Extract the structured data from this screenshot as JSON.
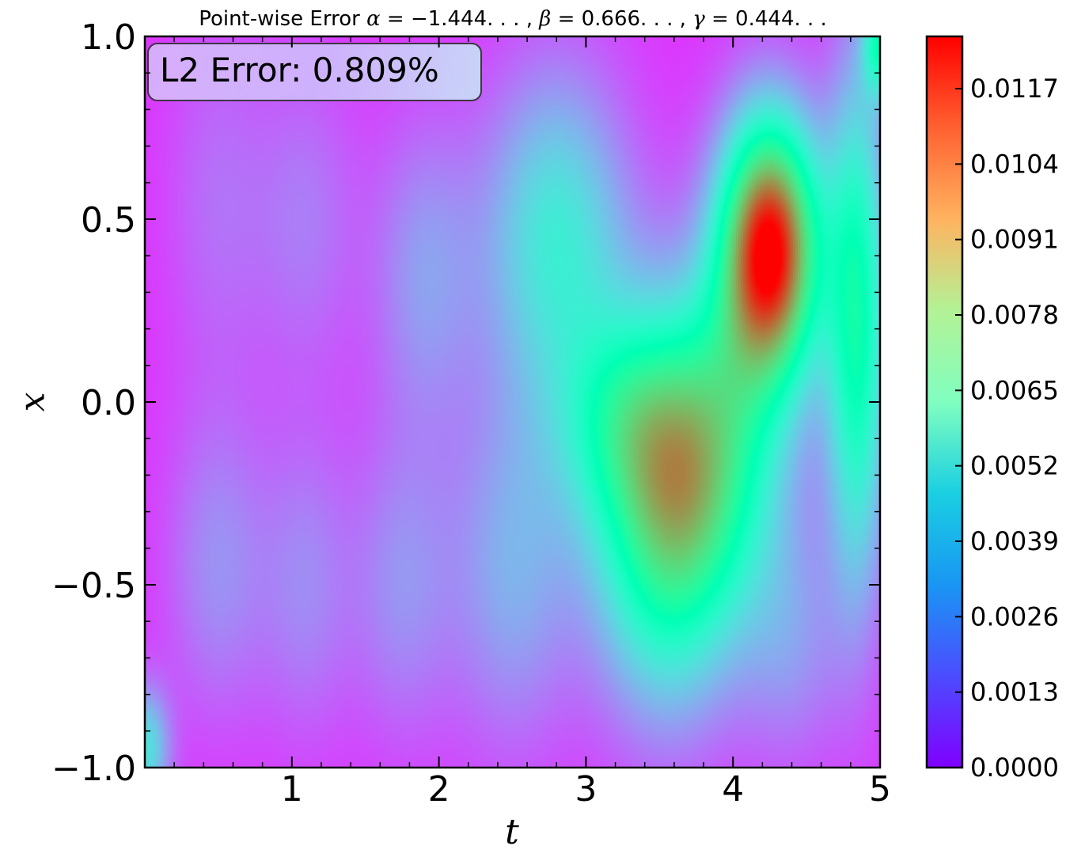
{
  "chart_data": {
    "type": "heatmap",
    "title_parts": {
      "prefix": "Point-wise Error ",
      "alpha_symbol": "α",
      "alpha_value": " = −1.444. . . , ",
      "beta_symbol": "β",
      "beta_value": " = 0.666. . . , ",
      "gamma_symbol": "γ",
      "gamma_value": " = 0.444. . ."
    },
    "xlabel": "t",
    "ylabel": "x",
    "xlim": [
      0,
      5
    ],
    "ylim": [
      -1,
      1
    ],
    "x_ticks": [
      {
        "value": 1,
        "label": "1"
      },
      {
        "value": 2,
        "label": "2"
      },
      {
        "value": 3,
        "label": "3"
      },
      {
        "value": 4,
        "label": "4"
      },
      {
        "value": 5,
        "label": "5"
      }
    ],
    "y_ticks": [
      {
        "value": -1.0,
        "label": "−1.0"
      },
      {
        "value": -0.5,
        "label": "−0.5"
      },
      {
        "value": 0.0,
        "label": "0.0"
      },
      {
        "value": 0.5,
        "label": "0.5"
      },
      {
        "value": 1.0,
        "label": "1.0"
      }
    ],
    "annotation": "L2 Error: 0.809%",
    "colormap": "rainbow",
    "colorbar": {
      "vmin": 0.0,
      "vmax": 0.0126,
      "ticks": [
        {
          "value": 0.0,
          "label": "0.0000"
        },
        {
          "value": 0.0013,
          "label": "0.0013"
        },
        {
          "value": 0.0026,
          "label": "0.0026"
        },
        {
          "value": 0.0039,
          "label": "0.0039"
        },
        {
          "value": 0.0052,
          "label": "0.0052"
        },
        {
          "value": 0.0065,
          "label": "0.0065"
        },
        {
          "value": 0.0078,
          "label": "0.0078"
        },
        {
          "value": 0.0091,
          "label": "0.0091"
        },
        {
          "value": 0.0104,
          "label": "0.0104"
        },
        {
          "value": 0.0117,
          "label": "0.0117"
        }
      ]
    },
    "background_value": 0.0008,
    "error_peaks": [
      {
        "t": 4.25,
        "x": 0.42,
        "value": 0.0118,
        "spread_t": 0.24,
        "spread_x": 0.25
      },
      {
        "t": 3.55,
        "x": -0.32,
        "value": 0.0065,
        "spread_t": 0.35,
        "spread_x": 0.35
      },
      {
        "t": 3.2,
        "x": -0.05,
        "value": 0.0028,
        "spread_t": 0.3,
        "spread_x": 0.2
      },
      {
        "t": 2.8,
        "x": 0.45,
        "value": 0.0038,
        "spread_t": 0.35,
        "spread_x": 0.32
      },
      {
        "t": 4.85,
        "x": 0.2,
        "value": 0.0055,
        "spread_t": 0.15,
        "spread_x": 0.5
      },
      {
        "t": 4.4,
        "x": -0.65,
        "value": 0.0016,
        "spread_t": 0.25,
        "spread_x": 0.25
      },
      {
        "t": 3.9,
        "x": -0.1,
        "value": 0.0042,
        "spread_t": 0.35,
        "spread_x": 0.3
      },
      {
        "t": 1.9,
        "x": 0.35,
        "value": 0.0018,
        "spread_t": 0.25,
        "spread_x": 0.3
      },
      {
        "t": 1.1,
        "x": 0.5,
        "value": 0.0012,
        "spread_t": 0.25,
        "spread_x": 0.3
      },
      {
        "t": 0.5,
        "x": 0.55,
        "value": 0.001,
        "spread_t": 0.25,
        "spread_x": 0.35
      },
      {
        "t": 0.5,
        "x": -0.45,
        "value": 0.0016,
        "spread_t": 0.25,
        "spread_x": 0.3
      },
      {
        "t": 1.1,
        "x": -0.5,
        "value": 0.0014,
        "spread_t": 0.22,
        "spread_x": 0.3
      },
      {
        "t": 1.75,
        "x": -0.5,
        "value": 0.0016,
        "spread_t": 0.25,
        "spread_x": 0.3
      },
      {
        "t": 2.5,
        "x": -0.45,
        "value": 0.0022,
        "spread_t": 0.3,
        "spread_x": 0.35
      },
      {
        "t": 0.0,
        "x": -0.95,
        "value": 0.0035,
        "spread_t": 0.12,
        "spread_x": 0.12
      },
      {
        "t": 5.0,
        "x": 0.98,
        "value": 0.0045,
        "spread_t": 0.08,
        "spread_x": 0.1
      }
    ]
  }
}
